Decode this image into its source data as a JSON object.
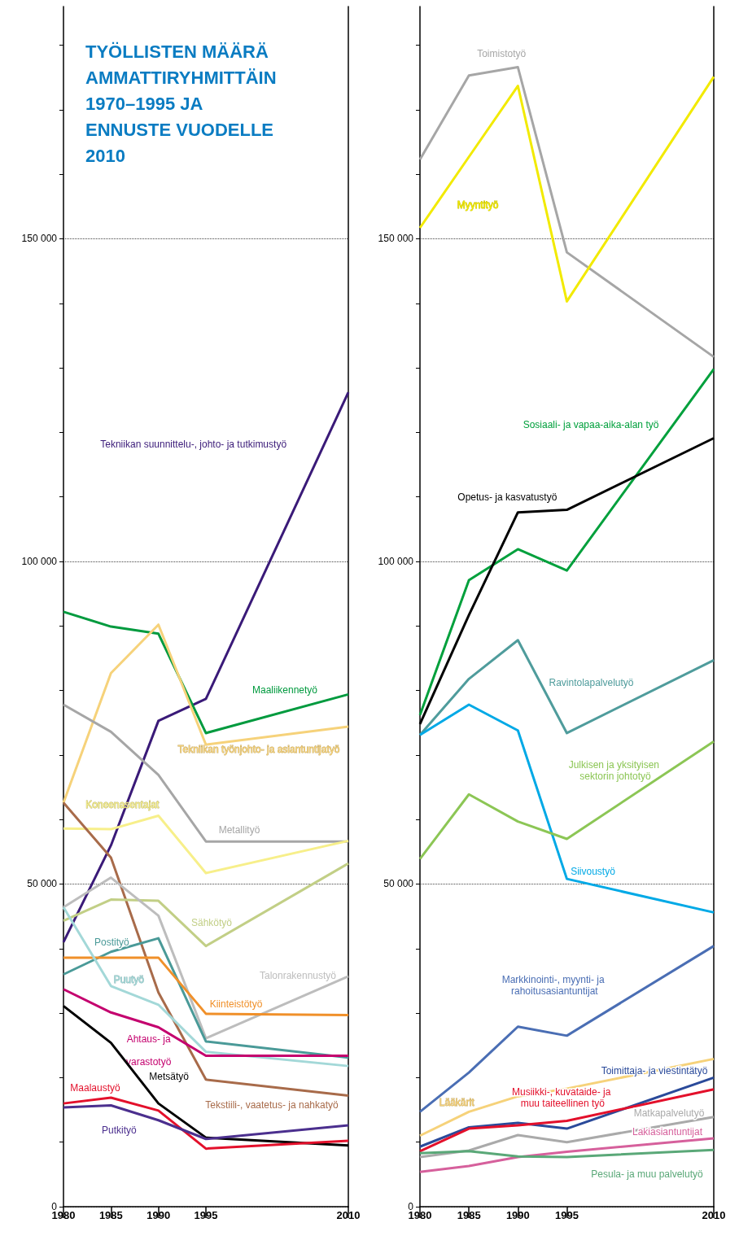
{
  "chart_data": [
    {
      "type": "line",
      "title": "TYÖLLISTEN MÄÄRÄ AMMATTIRYHMITTÄIN 1970–1995 JA ENNUSTE VUODELLE 2010",
      "x": [
        1980,
        1985,
        1990,
        1995,
        2010
      ],
      "xlim": [
        1980,
        2010
      ],
      "xticks": [
        1980,
        1985,
        1990,
        1995,
        2010
      ],
      "ylim": [
        0,
        186000
      ],
      "yticks": [
        {
          "value": 0,
          "label": "0"
        },
        {
          "value": 10000,
          "label": null
        },
        {
          "value": 20000,
          "label": null
        },
        {
          "value": 30000,
          "label": null
        },
        {
          "value": 40000,
          "label": null
        },
        {
          "value": 50000,
          "label": "50 000"
        },
        {
          "value": 60000,
          "label": null
        },
        {
          "value": 70000,
          "label": null
        },
        {
          "value": 80000,
          "label": null
        },
        {
          "value": 90000,
          "label": null
        },
        {
          "value": 100000,
          "label": "100 000"
        },
        {
          "value": 110000,
          "label": null
        },
        {
          "value": 120000,
          "label": null
        },
        {
          "value": 130000,
          "label": null
        },
        {
          "value": 140000,
          "label": null
        },
        {
          "value": 150000,
          "label": "150 000"
        },
        {
          "value": 160000,
          "label": null
        },
        {
          "value": 170000,
          "label": null
        },
        {
          "value": 180000,
          "label": null
        }
      ],
      "grid": "y",
      "series": [
        {
          "name": "Tekniikan suunnittelu-, johto- ja tutkimustyö",
          "color": "#3a1a78",
          "values": [
            41000,
            56000,
            75300,
            78700,
            126200
          ]
        },
        {
          "name": "Maaliikennetyö",
          "color": "#009a3e",
          "values": [
            92200,
            89900,
            88800,
            73400,
            79400
          ]
        },
        {
          "name": "Tekniikan työnjohto- ja asiantuntijatyö",
          "color": "#f6d27a",
          "values": [
            62600,
            82700,
            90200,
            71600,
            74400
          ]
        },
        {
          "name": "Metallityö",
          "color": "#a6a6a6",
          "values": [
            77800,
            73600,
            66900,
            56600,
            56600
          ]
        },
        {
          "name": "Koneenasentajat",
          "color": "#f7ef8a",
          "values": [
            58600,
            58500,
            60600,
            51700,
            56700
          ]
        },
        {
          "name": "Tekstiili-, vaatetus- ja nahkatyö",
          "color": "#a86b4a",
          "values": [
            62600,
            54100,
            33200,
            19700,
            17200
          ]
        },
        {
          "name": "Sähkötyö",
          "color": "#c2cf86",
          "values": [
            44300,
            47600,
            47400,
            40400,
            53200
          ]
        },
        {
          "name": "Talonrakennustyö",
          "color": "#bdbdbd",
          "values": [
            46400,
            51000,
            45100,
            26100,
            35700
          ]
        },
        {
          "name": "Postityö",
          "color": "#4a9a98",
          "values": [
            36000,
            39500,
            41600,
            25600,
            23100
          ]
        },
        {
          "name": "Kiinteistötyö",
          "color": "#f0902a",
          "values": [
            38600,
            38600,
            38600,
            29900,
            29700
          ]
        },
        {
          "name": "Puutyö",
          "color": "#a3d8d8",
          "values": [
            46400,
            34200,
            31300,
            24000,
            21800
          ]
        },
        {
          "name": "Ahtaus- ja varastotyö",
          "color": "#c4006e",
          "values": [
            33700,
            30100,
            27800,
            23400,
            23400
          ]
        },
        {
          "name": "Metsätyö",
          "color": "#000000",
          "values": [
            31100,
            25400,
            16000,
            10700,
            9500
          ]
        },
        {
          "name": "Maalaustyö",
          "color": "#e3102b",
          "values": [
            16000,
            16900,
            14900,
            9000,
            10200
          ]
        },
        {
          "name": "Putkityö",
          "color": "#4b2f8e",
          "values": [
            15400,
            15700,
            13400,
            10500,
            12600
          ]
        }
      ]
    },
    {
      "type": "line",
      "x": [
        1980,
        1985,
        1990,
        1995,
        2010
      ],
      "xlim": [
        1980,
        2010
      ],
      "xticks": [
        1980,
        1985,
        1990,
        1995,
        2010
      ],
      "ylim": [
        0,
        186000
      ],
      "yticks": [
        {
          "value": 0,
          "label": "0"
        },
        {
          "value": 10000,
          "label": null
        },
        {
          "value": 20000,
          "label": null
        },
        {
          "value": 30000,
          "label": null
        },
        {
          "value": 40000,
          "label": null
        },
        {
          "value": 50000,
          "label": "50 000"
        },
        {
          "value": 60000,
          "label": null
        },
        {
          "value": 70000,
          "label": null
        },
        {
          "value": 80000,
          "label": null
        },
        {
          "value": 90000,
          "label": null
        },
        {
          "value": 100000,
          "label": "100 000"
        },
        {
          "value": 110000,
          "label": null
        },
        {
          "value": 120000,
          "label": null
        },
        {
          "value": 130000,
          "label": null
        },
        {
          "value": 140000,
          "label": null
        },
        {
          "value": 150000,
          "label": "150 000"
        },
        {
          "value": 160000,
          "label": null
        },
        {
          "value": 170000,
          "label": null
        },
        {
          "value": 180000,
          "label": null
        }
      ],
      "grid": "y",
      "series": [
        {
          "name": "Toimistotyö",
          "color": "#a6a6a6",
          "values": [
            162300,
            175300,
            176600,
            147900,
            131700
          ]
        },
        {
          "name": "Myyntityö",
          "color": "#f2ea00",
          "values": [
            151700,
            162700,
            173700,
            140300,
            175100
          ]
        },
        {
          "name": "Sosiaali- ja vapaa-aika-alan työ",
          "color": "#00a03c",
          "values": [
            76200,
            97100,
            101900,
            98600,
            129800
          ]
        },
        {
          "name": "Opetus- ja kasvatustyö",
          "color": "#000000",
          "values": [
            74800,
            91700,
            107600,
            108000,
            119100
          ]
        },
        {
          "name": "Ravintolapalvelutyö",
          "color": "#4f9c9c",
          "values": [
            73100,
            81800,
            87800,
            73400,
            84700
          ]
        },
        {
          "name": "Siivoustyö",
          "color": "#00a9e6",
          "values": [
            73100,
            77800,
            73800,
            50800,
            45600
          ]
        },
        {
          "name": "Julkisen ja yksityisen sektorin johtotyö",
          "color": "#8cc655",
          "values": [
            53900,
            63900,
            59700,
            57000,
            72100
          ]
        },
        {
          "name": "Markkinointi-, myynti- ja rahoitusasiantuntijat",
          "color": "#4a6eb4",
          "values": [
            14700,
            20800,
            27900,
            26500,
            40400
          ]
        },
        {
          "name": "Lääkärit",
          "color": "#f6d27a",
          "values": [
            11000,
            14700,
            17100,
            18300,
            22900
          ]
        },
        {
          "name": "Toimittaja- ja viestintätyö",
          "color": "#2a4a9a",
          "values": [
            9300,
            12300,
            13000,
            12100,
            20000
          ]
        },
        {
          "name": "Musiikki-, kuvataide- ja muu taiteellinen työ",
          "color": "#e3102b",
          "values": [
            8600,
            12100,
            12600,
            13300,
            18200
          ]
        },
        {
          "name": "Matkapalvelutyö",
          "color": "#aaaaaa",
          "values": [
            7700,
            8700,
            11100,
            10000,
            13900
          ]
        },
        {
          "name": "Lakiasiantuntijat",
          "color": "#d6609c",
          "values": [
            5400,
            6300,
            7700,
            8500,
            10600
          ]
        },
        {
          "name": "Pesula- ja muu palvelutyö",
          "color": "#5aa878",
          "values": [
            8300,
            8600,
            7800,
            7700,
            8800
          ]
        }
      ]
    }
  ]
}
